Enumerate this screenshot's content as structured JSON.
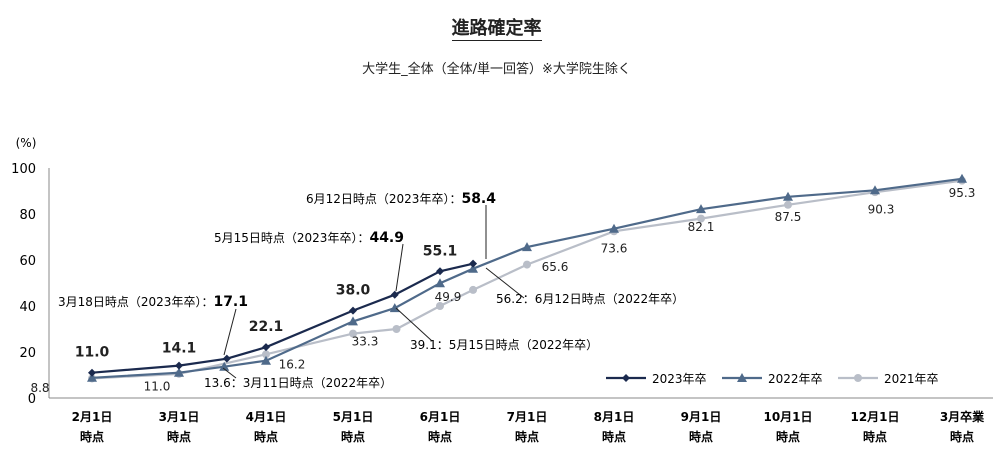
{
  "chart_data": {
    "type": "line",
    "title": "進路確定率",
    "subtitle": "大学生_全体（全体/単一回答）※大学院生除く",
    "ylabel": "(%)",
    "ylim": [
      0,
      100
    ],
    "yticks": [
      0,
      20,
      40,
      60,
      80,
      100
    ],
    "legend_position": "bottom-right",
    "grid": false,
    "categories": [
      {
        "line1": "2月1日",
        "line2": "時点"
      },
      {
        "line1": "3月1日",
        "line2": "時点"
      },
      {
        "line1": "4月1日",
        "line2": "時点"
      },
      {
        "line1": "5月1日",
        "line2": "時点"
      },
      {
        "line1": "6月1日",
        "line2": "時点"
      },
      {
        "line1": "7月1日",
        "line2": "時点"
      },
      {
        "line1": "8月1日",
        "line2": "時点"
      },
      {
        "line1": "9月1日",
        "line2": "時点"
      },
      {
        "line1": "10月1日",
        "line2": "時点"
      },
      {
        "line1": "12月1日",
        "line2": "時点"
      },
      {
        "line1": "3月卒業",
        "line2": "時点"
      }
    ],
    "series": [
      {
        "name": "2023年卒",
        "color": "#1b2a4e",
        "marker": "diamond",
        "points": [
          {
            "x": 0,
            "y": 11.0
          },
          {
            "x": 1,
            "y": 14.1
          },
          {
            "x": 1.55,
            "y": 17.1
          },
          {
            "x": 2,
            "y": 22.1
          },
          {
            "x": 3,
            "y": 38.0
          },
          {
            "x": 3.48,
            "y": 44.9
          },
          {
            "x": 4,
            "y": 55.1
          },
          {
            "x": 4.38,
            "y": 58.4
          }
        ]
      },
      {
        "name": "2022年卒",
        "color": "#4f6a8a",
        "marker": "triangle",
        "points": [
          {
            "x": 0,
            "y": 8.8
          },
          {
            "x": 1,
            "y": 11.0
          },
          {
            "x": 1.52,
            "y": 13.6
          },
          {
            "x": 2,
            "y": 16.2
          },
          {
            "x": 3,
            "y": 33.3
          },
          {
            "x": 3.48,
            "y": 39.1
          },
          {
            "x": 4,
            "y": 49.9
          },
          {
            "x": 4.38,
            "y": 56.2
          },
          {
            "x": 5,
            "y": 65.6
          },
          {
            "x": 6,
            "y": 73.6
          },
          {
            "x": 7,
            "y": 82.1
          },
          {
            "x": 8,
            "y": 87.5
          },
          {
            "x": 9,
            "y": 90.3
          },
          {
            "x": 10,
            "y": 95.3
          }
        ]
      },
      {
        "name": "2021年卒",
        "color": "#b9bec8",
        "marker": "circle",
        "points": [
          {
            "x": 0,
            "y": 8.5
          },
          {
            "x": 1,
            "y": 10.5
          },
          {
            "x": 2,
            "y": 19.0
          },
          {
            "x": 3,
            "y": 28.0
          },
          {
            "x": 3.5,
            "y": 30.0
          },
          {
            "x": 4,
            "y": 40.0
          },
          {
            "x": 4.38,
            "y": 47.0
          },
          {
            "x": 5,
            "y": 58.0
          },
          {
            "x": 6,
            "y": 72.5
          },
          {
            "x": 7,
            "y": 78.0
          },
          {
            "x": 8,
            "y": 84.0
          },
          {
            "x": 9,
            "y": 89.5
          },
          {
            "x": 10,
            "y": 94.5
          }
        ]
      }
    ],
    "data_labels": [
      {
        "text": "11.0",
        "bold": true,
        "x": 0,
        "y": 11.0,
        "dx": 0,
        "dy": -16
      },
      {
        "text": "14.1",
        "bold": true,
        "x": 1,
        "y": 14.1,
        "dx": 0,
        "dy": -13
      },
      {
        "text": "22.1",
        "bold": true,
        "x": 2,
        "y": 22.1,
        "dx": 0,
        "dy": -16
      },
      {
        "text": "38.0",
        "bold": true,
        "x": 3,
        "y": 38.0,
        "dx": 0,
        "dy": -16
      },
      {
        "text": "55.1",
        "bold": true,
        "x": 4,
        "y": 55.1,
        "dx": 0,
        "dy": -16
      },
      {
        "text": "8.8",
        "bold": false,
        "x": 0,
        "y": 8.8,
        "dx": -52,
        "dy": 14
      },
      {
        "text": "11.0",
        "bold": false,
        "x": 1,
        "y": 11.0,
        "dx": -22,
        "dy": 18
      },
      {
        "text": "16.2",
        "bold": false,
        "x": 2,
        "y": 16.2,
        "dx": 26,
        "dy": 8
      },
      {
        "text": "33.3",
        "bold": false,
        "x": 3,
        "y": 33.3,
        "dx": 12,
        "dy": 24
      },
      {
        "text": "49.9",
        "bold": false,
        "x": 4,
        "y": 49.9,
        "dx": 8,
        "dy": 18
      },
      {
        "text": "65.6",
        "bold": false,
        "x": 5,
        "y": 65.6,
        "dx": 28,
        "dy": 24
      },
      {
        "text": "73.6",
        "bold": false,
        "x": 6,
        "y": 73.6,
        "dx": 0,
        "dy": 24
      },
      {
        "text": "82.1",
        "bold": false,
        "x": 7,
        "y": 82.1,
        "dx": 0,
        "dy": 22
      },
      {
        "text": "87.5",
        "bold": false,
        "x": 8,
        "y": 87.5,
        "dx": 0,
        "dy": 24
      },
      {
        "text": "90.3",
        "bold": false,
        "x": 9,
        "y": 90.3,
        "dx": 6,
        "dy": 23
      },
      {
        "text": "95.3",
        "bold": false,
        "x": 10,
        "y": 95.3,
        "dx": 0,
        "dy": 18
      }
    ],
    "annotations": [
      {
        "prefix": "6月12日時点（2023年卒）：",
        "value": "58.4",
        "lx": 306,
        "ly": 203,
        "line": [
          [
            486,
            205
          ],
          [
            486,
            259
          ]
        ],
        "anchor": "start"
      },
      {
        "prefix": "5月15日時点（2023年卒）：",
        "value": "44.9",
        "lx": 214,
        "ly": 242,
        "line": [
          [
            403,
            244
          ],
          [
            396,
            291
          ]
        ],
        "anchor": "start"
      },
      {
        "prefix": "3月18日時点（2023年卒）：",
        "value": "17.1",
        "lx": 58,
        "ly": 306,
        "line": [
          [
            236,
            309
          ],
          [
            224,
            355
          ]
        ],
        "anchor": "start"
      },
      {
        "prefix": "56.2：6月12日時点（2022年卒）",
        "value": "",
        "lx": 496,
        "ly": 303,
        "line": [
          [
            486,
            268
          ],
          [
            524,
            298
          ]
        ],
        "anchor": "start"
      },
      {
        "prefix": "39.1：5月15日時点（2022年卒）",
        "value": "",
        "lx": 410,
        "ly": 349,
        "line": [
          [
            396,
            308
          ],
          [
            432,
            341
          ]
        ],
        "anchor": "start"
      },
      {
        "prefix": "13.6：3月11日時点（2022年卒）",
        "value": "",
        "lx": 204,
        "ly": 387,
        "line": [
          [
            223,
            368
          ],
          [
            236,
            378
          ]
        ],
        "anchor": "start"
      }
    ]
  }
}
